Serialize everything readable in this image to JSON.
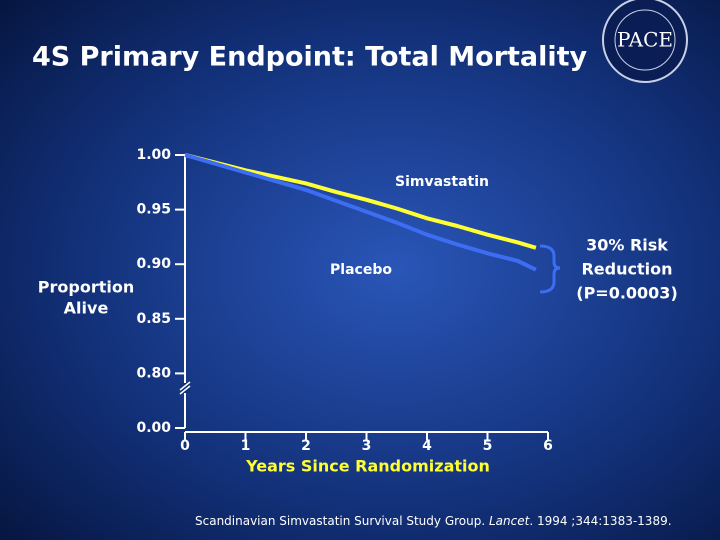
{
  "logo": "PACE",
  "chart_data": {
    "type": "line",
    "title": "4S Primary Endpoint: Total Mortality",
    "ylabel": [
      "Proportion",
      "Alive"
    ],
    "xlabel": "Years Since Randomization",
    "annotation": [
      "30% Risk",
      "Reduction",
      "(P=0.0003)"
    ],
    "citation": [
      "Scandinavian Simvastatin Survival Study Group. ",
      "Lancet",
      ". 1994 ;344:1383-1389."
    ],
    "xlim": [
      0,
      6
    ],
    "xticks": [
      0,
      1,
      2,
      3,
      4,
      5,
      6
    ],
    "ylim": [
      0,
      1.0
    ],
    "axis_break": [
      0,
      0.75
    ],
    "yticks": [
      {
        "value": 0,
        "label": "0.00"
      },
      {
        "value": 0.8,
        "label": "0.80"
      },
      {
        "value": 0.85,
        "label": "0.85"
      },
      {
        "value": 0.9,
        "label": "0.90"
      },
      {
        "value": 0.95,
        "label": "0.95"
      },
      {
        "value": 1.0,
        "label": "1.00"
      }
    ],
    "x": [
      0,
      0.5,
      1,
      1.5,
      2,
      2.5,
      3,
      3.5,
      4,
      4.5,
      5,
      5.5,
      5.8
    ],
    "series": [
      {
        "name": "Simvastatin",
        "color": "#ffff33",
        "values": [
          1.0,
          0.993,
          0.986,
          0.98,
          0.974,
          0.966,
          0.959,
          0.951,
          0.942,
          0.935,
          0.927,
          0.92,
          0.915
        ]
      },
      {
        "name": "Placebo",
        "color": "#3d6df2",
        "values": [
          1.0,
          0.992,
          0.984,
          0.976,
          0.968,
          0.958,
          0.948,
          0.938,
          0.927,
          0.918,
          0.91,
          0.903,
          0.895
        ]
      }
    ]
  }
}
